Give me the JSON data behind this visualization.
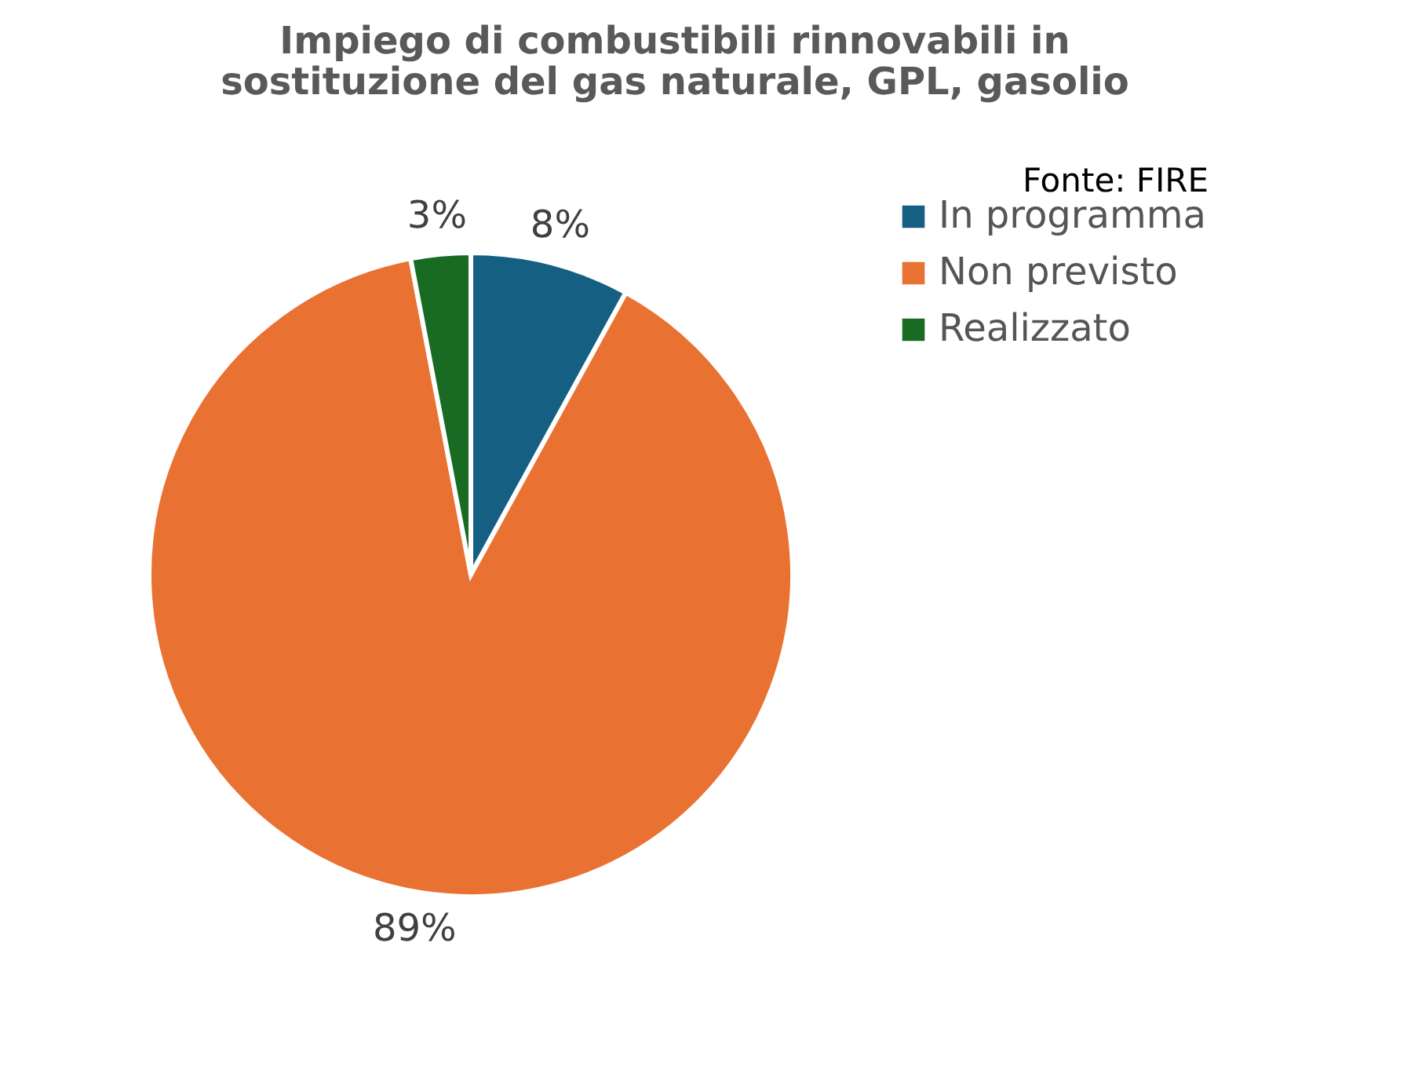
{
  "chart_data": {
    "type": "pie",
    "title": "Impiego di combustibili rinnovabili in sostituzione del gas naturale, GPL, gasolio",
    "categories": [
      "In programma",
      "Non previsto",
      "Realizzato"
    ],
    "values": [
      8,
      89,
      3
    ],
    "value_labels": [
      "8%",
      "89%",
      "3%"
    ],
    "colors": [
      "#156082",
      "#e97132",
      "#196b24"
    ],
    "legend": "right",
    "annotations": [
      "Fonte: FIRE"
    ]
  }
}
